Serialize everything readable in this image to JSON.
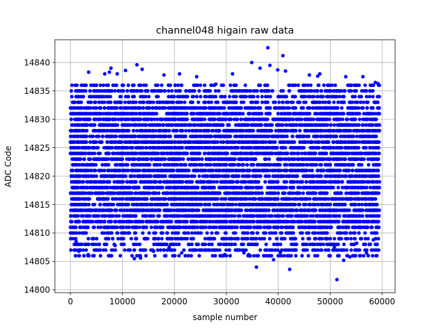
{
  "chart_data": {
    "type": "scatter",
    "title": "channel048 higain raw data",
    "xlabel": "sample number",
    "ylabel": "ADC Code",
    "xlim": [
      -3000,
      62500
    ],
    "ylim": [
      14799.5,
      14844.0
    ],
    "xticks": [
      0,
      10000,
      20000,
      30000,
      40000,
      50000,
      60000
    ],
    "yticks": [
      14800,
      14805,
      14810,
      14815,
      14820,
      14825,
      14830,
      14835,
      14840
    ],
    "grid": true,
    "marker_color": "#0000ff",
    "series": [
      {
        "name": "",
        "band": {
          "x_range": [
            0,
            59500
          ],
          "y_range": [
            14811,
            14832
          ]
        },
        "sparse_band": {
          "x_range": [
            0,
            59500
          ],
          "y_ranges": [
            [
              14806,
              14811
            ],
            [
              14832,
              14836
            ]
          ]
        },
        "outliers": [
          [
            1100,
            14808.5
          ],
          [
            1600,
            14806.8
          ],
          [
            2600,
            14806.0
          ],
          [
            3400,
            14806.2
          ],
          [
            3500,
            14838.3
          ],
          [
            5000,
            14807.0
          ],
          [
            6600,
            14838.0
          ],
          [
            7500,
            14838.3
          ],
          [
            7800,
            14839.0
          ],
          [
            9000,
            14838.0
          ],
          [
            10600,
            14838.6
          ],
          [
            12300,
            14805.5
          ],
          [
            12800,
            14839.6
          ],
          [
            13500,
            14805.6
          ],
          [
            13800,
            14838.8
          ],
          [
            16000,
            14806.8
          ],
          [
            18000,
            14837.8
          ],
          [
            21000,
            14838.0
          ],
          [
            21400,
            14806.5
          ],
          [
            23000,
            14807.0
          ],
          [
            24300,
            14837.5
          ],
          [
            26700,
            14807.0
          ],
          [
            29700,
            14806.2
          ],
          [
            31200,
            14838.0
          ],
          [
            33400,
            14806.5
          ],
          [
            34300,
            14806.2
          ],
          [
            34900,
            14840.0
          ],
          [
            35800,
            14804.0
          ],
          [
            36500,
            14839.0
          ],
          [
            37200,
            14806.0
          ],
          [
            38000,
            14842.6
          ],
          [
            38400,
            14839.5
          ],
          [
            39100,
            14805.3
          ],
          [
            39900,
            14838.7
          ],
          [
            40400,
            14806.6
          ],
          [
            40900,
            14841.2
          ],
          [
            41400,
            14838.5
          ],
          [
            42200,
            14803.6
          ],
          [
            43200,
            14807.0
          ],
          [
            46000,
            14837.8
          ],
          [
            48000,
            14838.0
          ],
          [
            50800,
            14807.5
          ],
          [
            51300,
            14801.8
          ],
          [
            51700,
            14806.0
          ],
          [
            52600,
            14805.2
          ],
          [
            53000,
            14837.5
          ],
          [
            53800,
            14805.8
          ],
          [
            56300,
            14837.5
          ],
          [
            57000,
            14806.5
          ],
          [
            58300,
            14808.8
          ],
          [
            59200,
            14836.3
          ],
          [
            300,
            14836.0
          ],
          [
            58700,
            14836.5
          ],
          [
            4200,
            14808.0
          ],
          [
            45000,
            14808.0
          ],
          [
            28000,
            14836.2
          ],
          [
            19000,
            14807.5
          ],
          [
            8600,
            14807.8
          ],
          [
            55100,
            14808.2
          ],
          [
            47600,
            14837.6
          ]
        ]
      }
    ]
  }
}
